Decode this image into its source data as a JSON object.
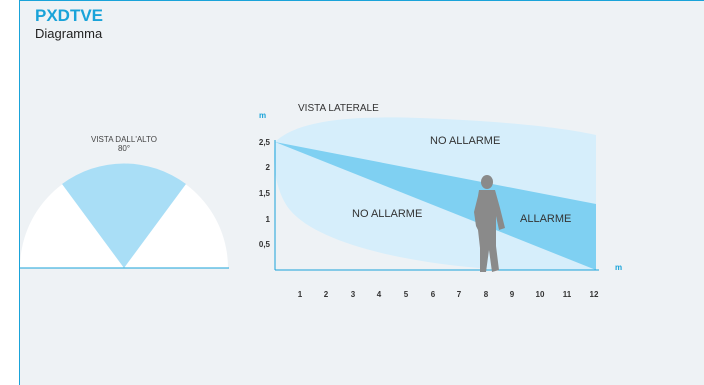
{
  "header": {
    "title": "PXDTVE",
    "subtitle": "Diagramma"
  },
  "top_view": {
    "title": "VISTA DALL'ALTO",
    "angle": "80°"
  },
  "side_view": {
    "title": "VISTA LATERALE",
    "y_unit": "m",
    "x_unit": "m",
    "y_ticks": [
      "2,5",
      "2",
      "1,5",
      "1",
      "0,5"
    ],
    "x_ticks": [
      "1",
      "2",
      "3",
      "4",
      "5",
      "6",
      "7",
      "8",
      "9",
      "10",
      "11",
      "12"
    ],
    "zone_upper": "NO ALLARME",
    "zone_lower": "NO ALLARME",
    "zone_alarm": "ALLARME"
  },
  "colors": {
    "accent": "#19a3d9",
    "light_zone": "#d6eefb",
    "beam": "#7fd0f2",
    "figure": "#8a8a8a"
  }
}
